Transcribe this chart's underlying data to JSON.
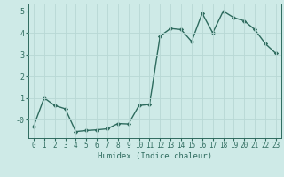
{
  "x": [
    0,
    1,
    2,
    3,
    4,
    5,
    6,
    7,
    8,
    9,
    10,
    11,
    12,
    13,
    14,
    15,
    16,
    17,
    18,
    19,
    20,
    21,
    22,
    23
  ],
  "y": [
    -0.3,
    1.0,
    0.65,
    0.5,
    -0.55,
    -0.5,
    -0.47,
    -0.42,
    -0.18,
    -0.2,
    0.65,
    0.7,
    3.85,
    4.2,
    4.15,
    3.6,
    4.9,
    4.0,
    5.0,
    4.7,
    4.55,
    4.15,
    3.5,
    3.05
  ],
  "xlabel": "Humidex (Indice chaleur)",
  "xlim": [
    -0.5,
    23.5
  ],
  "ylim": [
    -0.85,
    5.35
  ],
  "yticks": [
    0,
    1,
    2,
    3,
    4,
    5
  ],
  "ytick_labels": [
    "-0",
    "1",
    "2",
    "3",
    "4",
    "5"
  ],
  "xticks": [
    0,
    1,
    2,
    3,
    4,
    5,
    6,
    7,
    8,
    9,
    10,
    11,
    12,
    13,
    14,
    15,
    16,
    17,
    18,
    19,
    20,
    21,
    22,
    23
  ],
  "line_color": "#2e6b5e",
  "marker": "D",
  "marker_size": 2.2,
  "bg_color": "#ceeae7",
  "grid_color": "#b8d8d5",
  "line_width": 1.0,
  "tick_label_color": "#2e6b5e",
  "xlabel_fontsize": 6.5,
  "tick_fontsize": 5.5
}
